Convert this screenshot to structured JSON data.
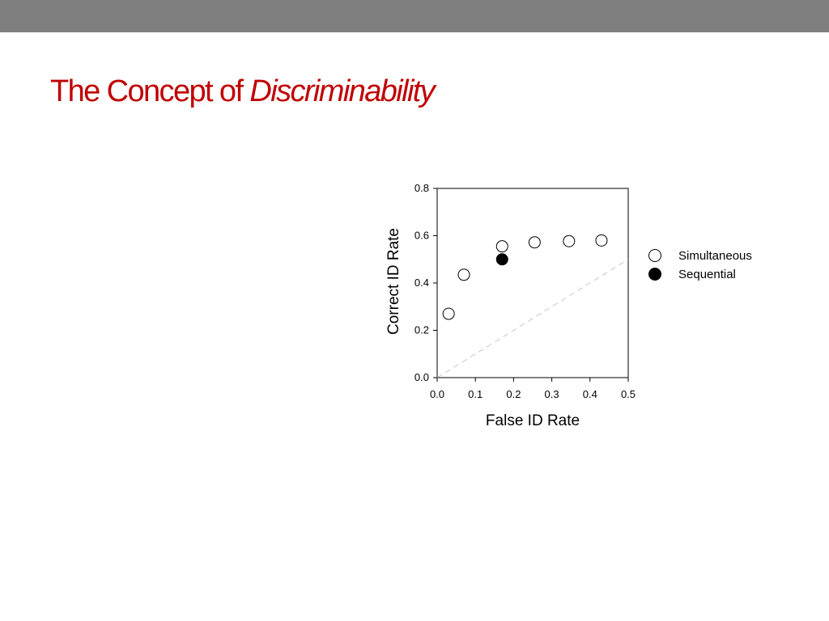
{
  "slide": {
    "title_main": "The Concept of",
    "title_emphasis": "Discriminability",
    "top_bar_color": "#7f7f7f",
    "title_color": "#c00000"
  },
  "chart_data": {
    "type": "scatter",
    "xlabel": "False ID Rate",
    "ylabel": "Correct ID Rate",
    "xlim": [
      0,
      0.5
    ],
    "ylim": [
      0,
      0.8
    ],
    "xticks": [
      "0.0",
      "0.1",
      "0.2",
      "0.3",
      "0.4",
      "0.5"
    ],
    "yticks": [
      "0.0",
      "0.2",
      "0.4",
      "0.6",
      "0.8"
    ],
    "grid": false,
    "legend_position": "right",
    "reference_line": {
      "style": "dashed",
      "color": "#c8c8c8",
      "from": [
        0,
        0
      ],
      "to": [
        0.5,
        0.5
      ]
    },
    "series": [
      {
        "name": "Simultaneous",
        "marker": "open-circle",
        "points": [
          {
            "x": 0.03,
            "y": 0.27
          },
          {
            "x": 0.07,
            "y": 0.435
          },
          {
            "x": 0.17,
            "y": 0.555
          },
          {
            "x": 0.255,
            "y": 0.572
          },
          {
            "x": 0.345,
            "y": 0.577
          },
          {
            "x": 0.43,
            "y": 0.58
          }
        ]
      },
      {
        "name": "Sequential",
        "marker": "filled-circle",
        "points": [
          {
            "x": 0.17,
            "y": 0.5
          }
        ]
      }
    ]
  }
}
